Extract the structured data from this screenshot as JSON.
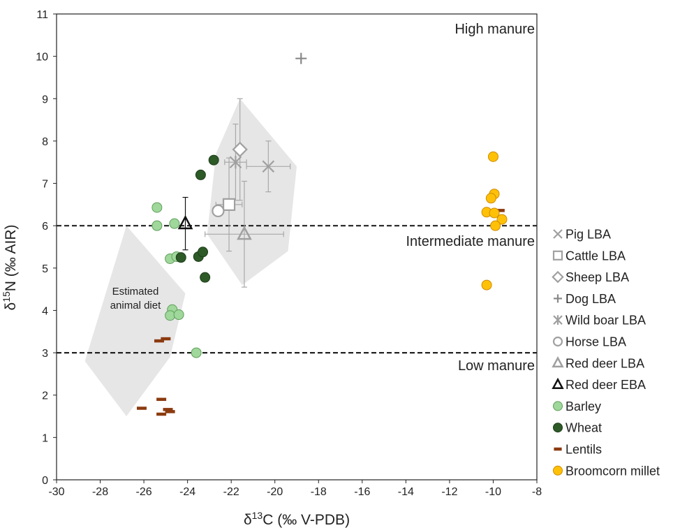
{
  "chart_data": {
    "type": "scatter",
    "xlabel": "δ13C (‰ V-PDB)",
    "ylabel": "δ15N (‰ AIR)",
    "xlim": [
      -30,
      -8
    ],
    "ylim": [
      0,
      11
    ],
    "xticks": [
      -30,
      -28,
      -26,
      -24,
      -22,
      -20,
      -18,
      -16,
      -14,
      -12,
      -10,
      -8
    ],
    "yticks": [
      0,
      1,
      2,
      3,
      4,
      5,
      6,
      7,
      8,
      9,
      10,
      11
    ],
    "grid": false,
    "legend_position": "right",
    "region_labels": [
      "High manure",
      "Intermediate manure",
      "Low manure"
    ],
    "thresholds": [
      6,
      3
    ],
    "annotation": {
      "lines": [
        "Estimated",
        "animal diet"
      ]
    },
    "shaded_areas": [
      {
        "points": [
          [
            -26.8,
            6.0
          ],
          [
            -24.1,
            4.4
          ],
          [
            -24.8,
            2.9
          ],
          [
            -26.8,
            1.5
          ],
          [
            -28.7,
            2.8
          ]
        ]
      },
      {
        "points": [
          [
            -21.6,
            9.0
          ],
          [
            -19.0,
            7.4
          ],
          [
            -19.4,
            5.4
          ],
          [
            -21.5,
            4.6
          ],
          [
            -23.1,
            5.8
          ],
          [
            -22.7,
            7.7
          ]
        ]
      }
    ],
    "series": [
      {
        "name": "Pig LBA",
        "marker": "x",
        "color": "#a0a0a0",
        "points": [
          {
            "x": -20.3,
            "y": 7.4,
            "xerr": 1.0,
            "yerr": 0.6
          }
        ]
      },
      {
        "name": "Cattle LBA",
        "marker": "square",
        "color": "#a0a0a0",
        "points": [
          {
            "x": -22.1,
            "y": 6.5,
            "xerr": 0.6,
            "yerr": 1.1
          }
        ]
      },
      {
        "name": "Sheep LBA",
        "marker": "diamond",
        "color": "#a0a0a0",
        "points": [
          {
            "x": -21.6,
            "y": 7.8,
            "xerr": 0.0,
            "yerr": 1.2
          }
        ]
      },
      {
        "name": "Dog LBA",
        "marker": "plus",
        "color": "#888888",
        "points": [
          {
            "x": -18.8,
            "y": 9.95
          }
        ]
      },
      {
        "name": "Wild boar LBA",
        "marker": "asterisk",
        "color": "#a0a0a0",
        "points": [
          {
            "x": -21.8,
            "y": 7.5,
            "xerr": 0.5,
            "yerr": 0.9
          }
        ]
      },
      {
        "name": "Horse LBA",
        "marker": "circle-open",
        "color": "#a0a0a0",
        "points": [
          {
            "x": -22.6,
            "y": 6.35
          }
        ]
      },
      {
        "name": "Red deer LBA",
        "marker": "triangle",
        "color": "#a0a0a0",
        "points": [
          {
            "x": -21.4,
            "y": 5.8,
            "xerr": 1.8,
            "yerr": 1.25
          }
        ]
      },
      {
        "name": "Red deer EBA",
        "marker": "triangle",
        "color": "#111111",
        "points": [
          {
            "x": -24.1,
            "y": 6.05,
            "xerr": 0.0,
            "yerr": 0.62
          }
        ]
      },
      {
        "name": "Barley",
        "marker": "circle",
        "color": "#9fd89a",
        "stroke": "#5f9f5a",
        "points": [
          {
            "x": -25.4,
            "y": 6.43
          },
          {
            "x": -25.4,
            "y": 6.0
          },
          {
            "x": -24.6,
            "y": 6.05
          },
          {
            "x": -24.8,
            "y": 5.22
          },
          {
            "x": -24.5,
            "y": 5.27
          },
          {
            "x": -24.7,
            "y": 4.02
          },
          {
            "x": -24.8,
            "y": 3.88
          },
          {
            "x": -24.4,
            "y": 3.9
          },
          {
            "x": -23.6,
            "y": 3.0
          }
        ]
      },
      {
        "name": "Wheat",
        "marker": "circle",
        "color": "#2d5a27",
        "stroke": "#1d3c19",
        "points": [
          {
            "x": -22.8,
            "y": 7.55
          },
          {
            "x": -23.4,
            "y": 7.2
          },
          {
            "x": -24.3,
            "y": 5.25
          },
          {
            "x": -23.5,
            "y": 5.27
          },
          {
            "x": -23.3,
            "y": 5.38
          },
          {
            "x": -23.2,
            "y": 4.78
          }
        ]
      },
      {
        "name": "Lentils",
        "marker": "dash",
        "color": "#8b3a0f",
        "points": [
          {
            "x": -25.0,
            "y": 3.33
          },
          {
            "x": -25.3,
            "y": 3.28
          },
          {
            "x": -25.2,
            "y": 1.9
          },
          {
            "x": -26.1,
            "y": 1.69
          },
          {
            "x": -24.9,
            "y": 1.66
          },
          {
            "x": -24.8,
            "y": 1.61
          },
          {
            "x": -25.2,
            "y": 1.55
          },
          {
            "x": -9.7,
            "y": 6.36
          }
        ]
      },
      {
        "name": "Broomcorn millet",
        "marker": "circle",
        "color": "#ffc107",
        "stroke": "#d08a00",
        "points": [
          {
            "x": -10.0,
            "y": 7.63
          },
          {
            "x": -9.95,
            "y": 6.75
          },
          {
            "x": -10.1,
            "y": 6.65
          },
          {
            "x": -10.3,
            "y": 6.32
          },
          {
            "x": -9.95,
            "y": 6.3
          },
          {
            "x": -9.6,
            "y": 6.15
          },
          {
            "x": -9.9,
            "y": 6.0
          },
          {
            "x": -10.3,
            "y": 4.6
          }
        ]
      }
    ]
  }
}
